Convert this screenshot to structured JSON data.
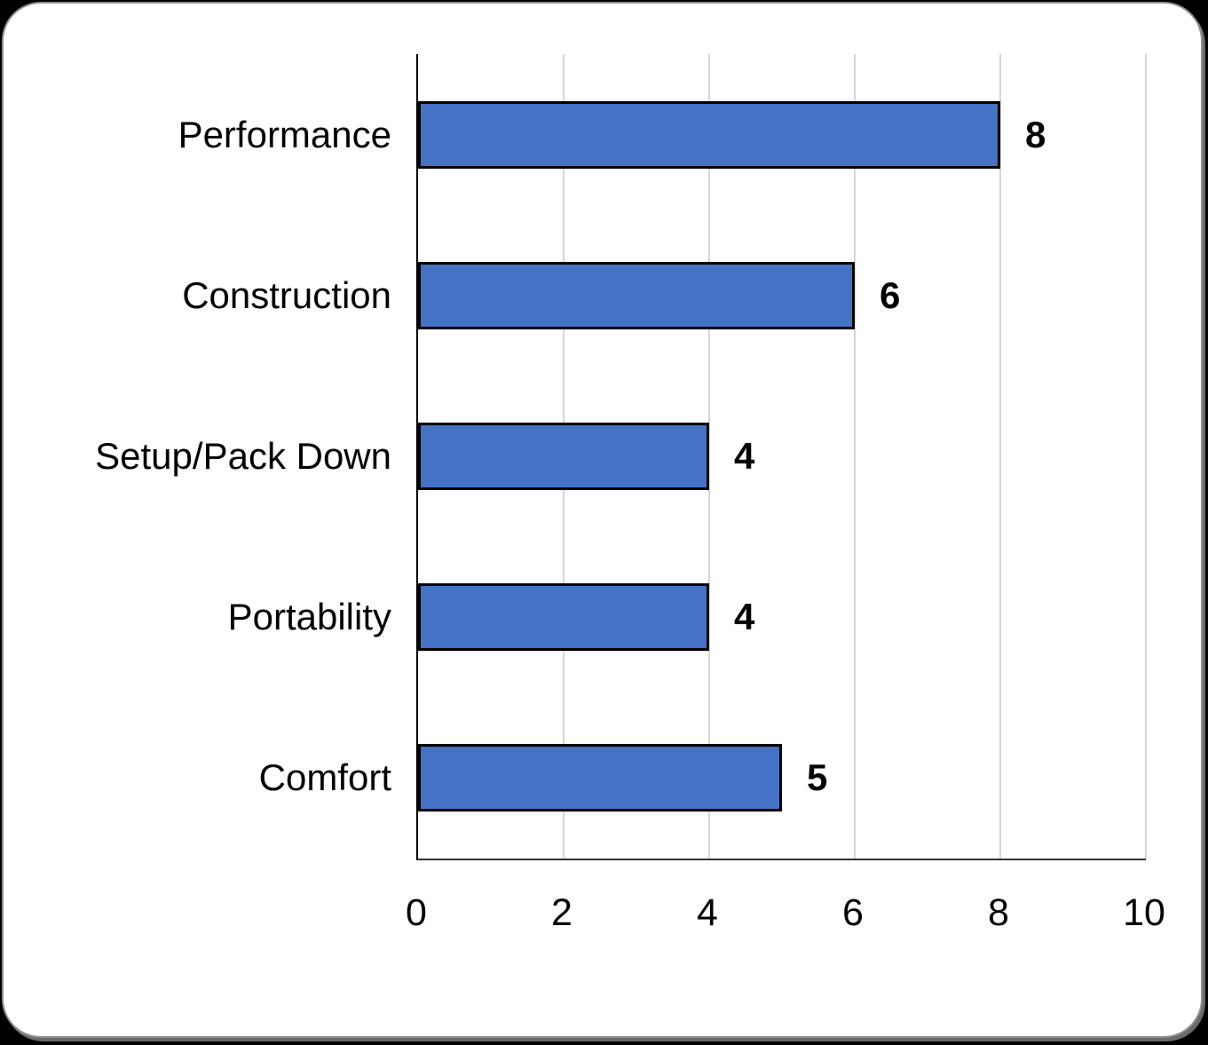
{
  "page": {
    "background_color": "#000000",
    "card_color": "#FFFFFF"
  },
  "chart_data": {
    "type": "bar",
    "orientation": "horizontal",
    "title": "",
    "xlabel": "",
    "ylabel": "",
    "categories": [
      "Performance",
      "Construction",
      "Setup/Pack Down",
      "Portability",
      "Comfort"
    ],
    "values": [
      8,
      6,
      4,
      4,
      5
    ],
    "data_labels": [
      "8",
      "6",
      "4",
      "4",
      "5"
    ],
    "xlim": [
      0,
      10
    ],
    "x_ticks": [
      0,
      2,
      4,
      6,
      8,
      10
    ],
    "x_tick_labels": [
      "0",
      "2",
      "4",
      "6",
      "8",
      "10"
    ],
    "grid": "vertical",
    "legend": "none",
    "bar_color": "#4472C4",
    "bar_border_color": "#000000",
    "gridline_color": "#D6D6D6"
  }
}
